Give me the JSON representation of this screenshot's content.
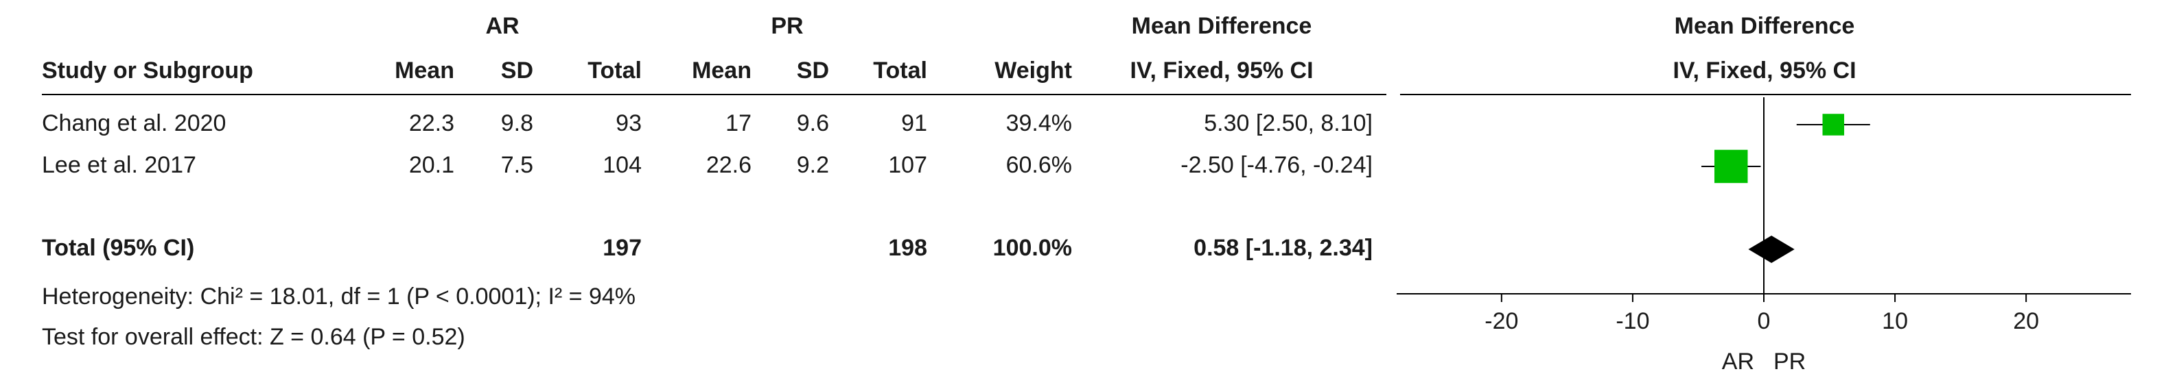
{
  "chart_data": {
    "type": "forest",
    "group_headers": [
      "AR",
      "PR"
    ],
    "effect_header": "Mean Difference",
    "effect_subheader": "IV, Fixed, 95% CI",
    "plot_header": "Mean Difference",
    "plot_subheader": "IV, Fixed, 95% CI",
    "columns": [
      "Study or Subgroup",
      "Mean",
      "SD",
      "Total",
      "Mean",
      "SD",
      "Total",
      "Weight"
    ],
    "studies": [
      {
        "name": "Chang et al. 2020",
        "ar_mean": 22.3,
        "ar_sd": 9.8,
        "ar_total": 93,
        "pr_mean": 17,
        "pr_sd": 9.6,
        "pr_total": 91,
        "weight": 39.4,
        "weight_label": "39.4%",
        "md": 5.3,
        "ci": [
          2.5,
          8.1
        ],
        "md_label": "5.30 [2.50, 8.10]"
      },
      {
        "name": "Lee et al. 2017",
        "ar_mean": 20.1,
        "ar_sd": 7.5,
        "ar_total": 104,
        "pr_mean": 22.6,
        "pr_sd": 9.2,
        "pr_total": 107,
        "weight": 60.6,
        "weight_label": "60.6%",
        "md": -2.5,
        "ci": [
          -4.76,
          -0.24
        ],
        "md_label": "-2.50 [-4.76, -0.24]"
      }
    ],
    "total": {
      "name": "Total (95% CI)",
      "ar_total": 197,
      "pr_total": 198,
      "weight": 100,
      "weight_label": "100.0%",
      "md": 0.58,
      "ci": [
        -1.18,
        2.34
      ],
      "md_label": "0.58 [-1.18, 2.34]"
    },
    "heterogeneity": "Heterogeneity: Chi² = 18.01, df = 1 (P < 0.0001); I² = 94%",
    "overall_effect": "Test for overall effect: Z = 0.64 (P = 0.52)",
    "xlim": [
      -28,
      28
    ],
    "xticks": [
      -20,
      -10,
      0,
      10,
      20
    ],
    "favours_left": "AR",
    "favours_right": "PR",
    "marker_color": "#00c000",
    "diamond_color": "#000000"
  }
}
